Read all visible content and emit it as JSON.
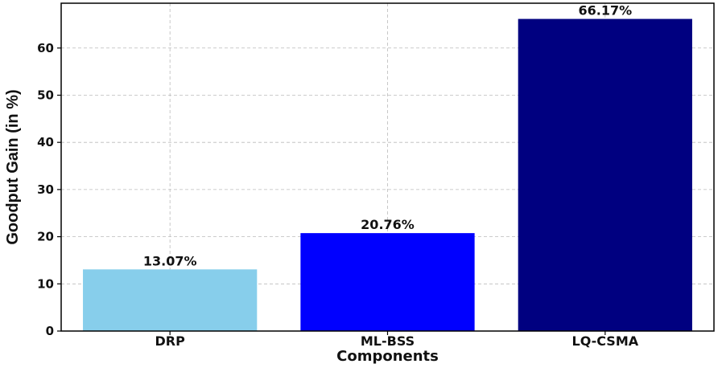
{
  "chart_data": {
    "type": "bar",
    "categories": [
      "DRP",
      "ML-BSS",
      "LQ-CSMA"
    ],
    "values": [
      13.07,
      20.76,
      66.17
    ],
    "value_labels": [
      "13.07%",
      "20.76%",
      "66.17%"
    ],
    "colors": [
      "#87CEEB",
      "#0000FF",
      "#000080"
    ],
    "xlabel": "Components",
    "ylabel": "Goodput Gain (in %)",
    "ylim": [
      0,
      69.5
    ],
    "yticks": [
      0,
      10,
      20,
      30,
      40,
      50,
      60
    ],
    "grid": true,
    "legend": "none"
  }
}
